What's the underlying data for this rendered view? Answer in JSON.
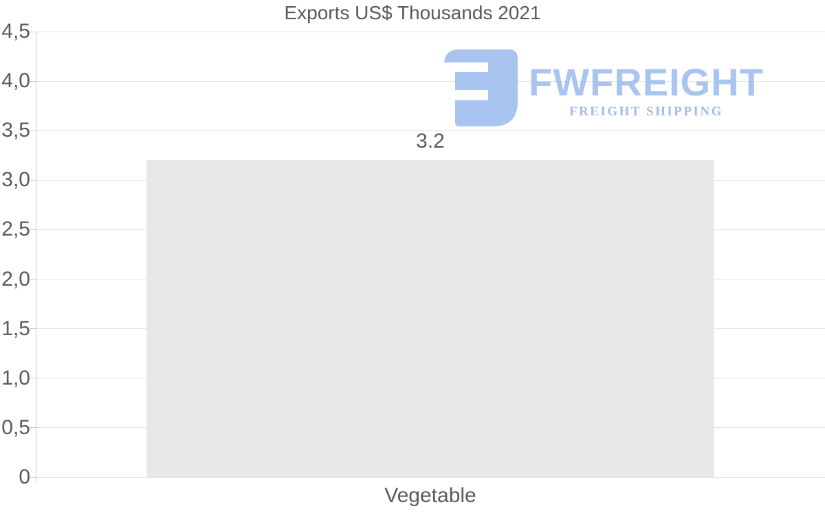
{
  "title": "Exports US$ Thousands 2021",
  "watermark": {
    "brand": "FWFREIGHT",
    "tagline": "FREIGHT SHIPPING",
    "brand_color": "#a9c4f0",
    "tagline_color": "#a4bbe6"
  },
  "chart_data": {
    "type": "bar",
    "title": "Exports US$ Thousands 2021",
    "categories": [
      "Vegetable"
    ],
    "values": [
      3.2
    ],
    "value_labels": [
      "3.2"
    ],
    "xlabel": "",
    "ylabel": "",
    "ylim": [
      0,
      4.5
    ],
    "ytick_step": 0.5,
    "ytick_labels": [
      "0",
      "0,5",
      "1,0",
      "1,5",
      "2,0",
      "2,5",
      "3,0",
      "3,5",
      "4,0",
      "4,5"
    ],
    "grid": true,
    "legend": "none",
    "bar_width_frac": 0.72,
    "bar_color": "#e8e8e8",
    "gridline_color": "#e2e2e2",
    "axis_color": "#c9c9c9",
    "text_color": "#595959"
  }
}
